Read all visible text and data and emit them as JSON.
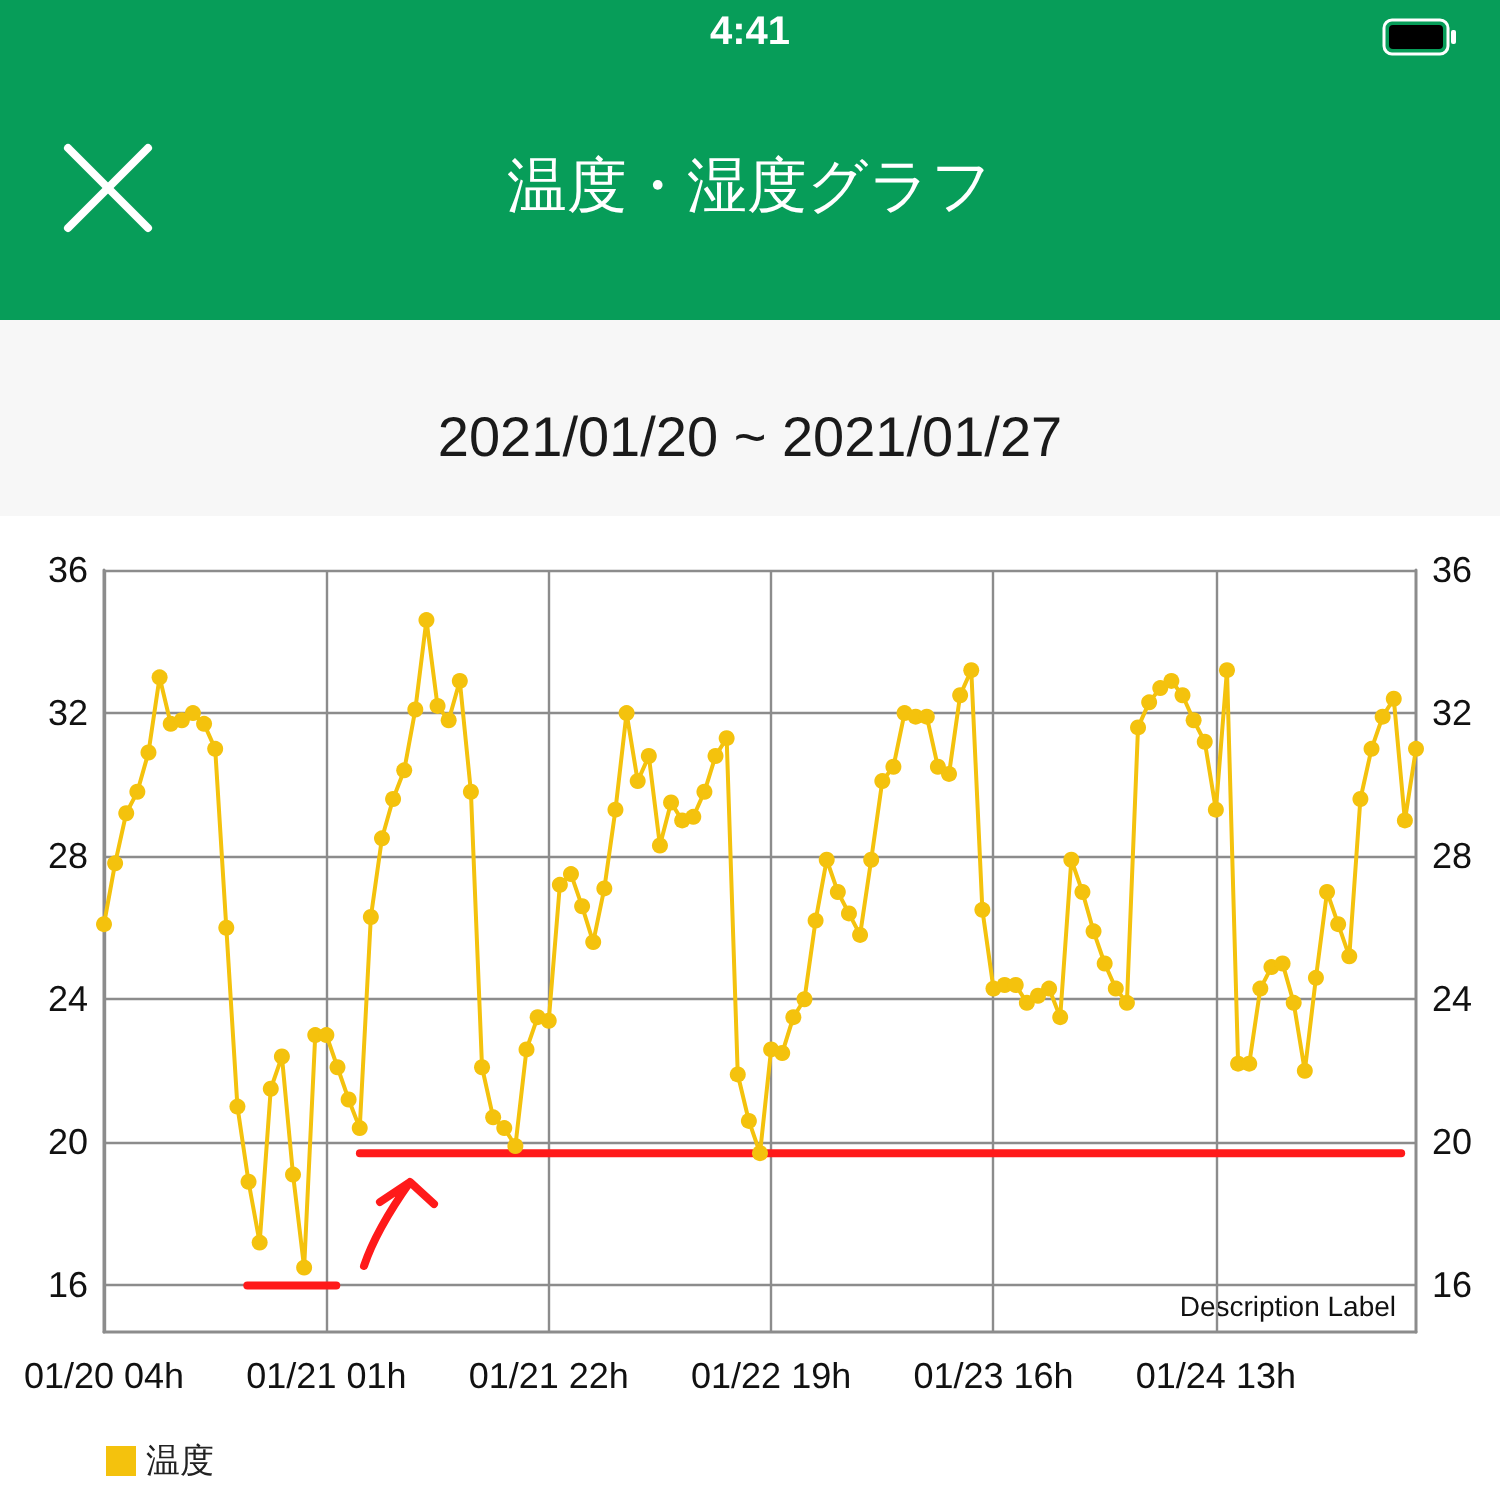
{
  "chart_data": {
    "type": "line",
    "title": "温度・湿度グラフ",
    "subtitle": "2021/01/20 ~ 2021/01/27",
    "annotations": [
      "4:41",
      "Description Label"
    ],
    "x": [
      "2021-01-20T04:00",
      "2021-01-20T05:03",
      "2021-01-20T06:06",
      "2021-01-20T07:09",
      "2021-01-20T08:12",
      "2021-01-20T09:15",
      "2021-01-20T10:18",
      "2021-01-20T11:21",
      "2021-01-20T12:24",
      "2021-01-20T13:27",
      "2021-01-20T14:30",
      "2021-01-20T15:33",
      "2021-01-20T16:36",
      "2021-01-20T17:39",
      "2021-01-20T18:42",
      "2021-01-20T19:45",
      "2021-01-20T20:48",
      "2021-01-20T21:51",
      "2021-01-20T22:54",
      "2021-01-20T23:57",
      "2021-01-21T01:00",
      "2021-01-21T02:03",
      "2021-01-21T03:06",
      "2021-01-21T04:09",
      "2021-01-21T05:12",
      "2021-01-21T06:15",
      "2021-01-21T07:18",
      "2021-01-21T08:21",
      "2021-01-21T09:24",
      "2021-01-21T10:27",
      "2021-01-21T11:30",
      "2021-01-21T12:33",
      "2021-01-21T13:36",
      "2021-01-21T14:39",
      "2021-01-21T15:42",
      "2021-01-21T16:45",
      "2021-01-21T17:48",
      "2021-01-21T18:51",
      "2021-01-21T19:54",
      "2021-01-21T20:57",
      "2021-01-21T22:00",
      "2021-01-21T23:03",
      "2021-01-22T00:06",
      "2021-01-22T01:09",
      "2021-01-22T02:12",
      "2021-01-22T03:15",
      "2021-01-22T04:18",
      "2021-01-22T05:21",
      "2021-01-22T06:24",
      "2021-01-22T07:27",
      "2021-01-22T08:30",
      "2021-01-22T09:33",
      "2021-01-22T10:36",
      "2021-01-22T11:39",
      "2021-01-22T12:42",
      "2021-01-22T13:45",
      "2021-01-22T14:48",
      "2021-01-22T15:51",
      "2021-01-22T16:54",
      "2021-01-22T17:57",
      "2021-01-22T19:00",
      "2021-01-22T20:03",
      "2021-01-22T21:06",
      "2021-01-22T22:09",
      "2021-01-22T23:12",
      "2021-01-23T00:15",
      "2021-01-23T01:18",
      "2021-01-23T02:21",
      "2021-01-23T03:24",
      "2021-01-23T04:27",
      "2021-01-23T05:30",
      "2021-01-23T06:33",
      "2021-01-23T07:36",
      "2021-01-23T08:39",
      "2021-01-23T09:42",
      "2021-01-23T10:45",
      "2021-01-23T11:48",
      "2021-01-23T12:51",
      "2021-01-23T13:54",
      "2021-01-23T14:57",
      "2021-01-23T16:00",
      "2021-01-23T17:03",
      "2021-01-23T18:06",
      "2021-01-23T19:09",
      "2021-01-23T20:12",
      "2021-01-23T21:15",
      "2021-01-23T22:18",
      "2021-01-23T23:21",
      "2021-01-24T00:24",
      "2021-01-24T01:27",
      "2021-01-24T02:30",
      "2021-01-24T03:33",
      "2021-01-24T04:36",
      "2021-01-24T05:39",
      "2021-01-24T06:42",
      "2021-01-24T07:45",
      "2021-01-24T08:48",
      "2021-01-24T09:51",
      "2021-01-24T10:54",
      "2021-01-24T11:57",
      "2021-01-24T13:00",
      "2021-01-24T14:03",
      "2021-01-24T15:06",
      "2021-01-24T16:09",
      "2021-01-24T17:12",
      "2021-01-24T18:15",
      "2021-01-24T19:18",
      "2021-01-24T20:21",
      "2021-01-24T21:24",
      "2021-01-24T22:27",
      "2021-01-24T23:30",
      "2021-01-25T00:33",
      "2021-01-25T01:36",
      "2021-01-25T02:39",
      "2021-01-25T03:42",
      "2021-01-25T04:45",
      "2021-01-25T05:48",
      "2021-01-25T06:51",
      "2021-01-25T07:54"
    ],
    "series": [
      {
        "name": "温度",
        "color": "#f4c20d",
        "values": [
          26.1,
          27.8,
          29.2,
          29.8,
          30.9,
          33.0,
          31.7,
          31.8,
          32.0,
          31.7,
          31.0,
          26.0,
          21.0,
          18.9,
          17.2,
          21.5,
          22.4,
          19.1,
          16.5,
          23.0,
          23.0,
          22.1,
          21.2,
          20.4,
          26.3,
          28.5,
          29.6,
          30.4,
          32.1,
          34.6,
          32.2,
          31.8,
          32.9,
          29.8,
          22.1,
          20.7,
          20.4,
          19.9,
          22.6,
          23.5,
          23.4,
          27.2,
          27.5,
          26.6,
          25.6,
          27.1,
          29.3,
          32.0,
          30.1,
          30.8,
          28.3,
          29.5,
          29.0,
          29.1,
          29.8,
          30.8,
          31.3,
          21.9,
          20.6,
          19.7,
          22.6,
          22.5,
          23.5,
          24.0,
          26.2,
          27.9,
          27.0,
          26.4,
          25.8,
          27.9,
          30.1,
          30.5,
          32.0,
          31.9,
          31.9,
          30.5,
          30.3,
          32.5,
          33.2,
          26.5,
          24.3,
          24.4,
          24.4,
          23.9,
          24.1,
          24.3,
          23.5,
          27.9,
          27.0,
          25.9,
          25.0,
          24.3,
          23.9,
          31.6,
          32.3,
          32.7,
          32.9,
          32.5,
          31.8,
          31.2,
          29.3,
          33.2,
          22.2,
          22.2,
          24.3,
          24.9,
          25.0,
          23.9,
          22.0,
          24.6,
          27.0,
          26.1,
          25.2,
          29.6,
          31.0,
          31.9,
          32.4,
          29.0,
          31.0
        ]
      },
      {
        "color": "#ff1a1a",
        "marker": "none",
        "x": [
          "2021-01-20T17:32",
          "2021-01-21T01:56"
        ],
        "values": [
          16,
          16
        ]
      },
      {
        "color": "#ff1a1a",
        "marker": "none",
        "x": [
          "2021-01-21T04:10",
          "2021-01-25T06:30"
        ],
        "values": [
          19.7,
          19.7
        ]
      }
    ],
    "xlim": [
      "2021-01-20T04:00",
      "2021-01-25T07:54"
    ],
    "xticks": [
      {
        "value": "2021-01-20T04:00",
        "label": "01/20 04h"
      },
      {
        "value": "2021-01-21T01:00",
        "label": "01/21 01h"
      },
      {
        "value": "2021-01-21T22:00",
        "label": "01/21 22h"
      },
      {
        "value": "2021-01-22T19:00",
        "label": "01/22 19h"
      },
      {
        "value": "2021-01-23T16:00",
        "label": "01/23 16h"
      },
      {
        "value": "2021-01-24T13:00",
        "label": "01/24 13h"
      }
    ],
    "ylim": [
      14.7,
      36
    ],
    "yticks": [
      16,
      20,
      24,
      28,
      32,
      36
    ],
    "y2lim": [
      14.7,
      36
    ],
    "y2ticks": [
      16,
      20,
      24,
      28,
      32,
      36
    ],
    "grid": true,
    "legend": "bottom left",
    "marker": "circle",
    "line_style": "solid"
  }
}
